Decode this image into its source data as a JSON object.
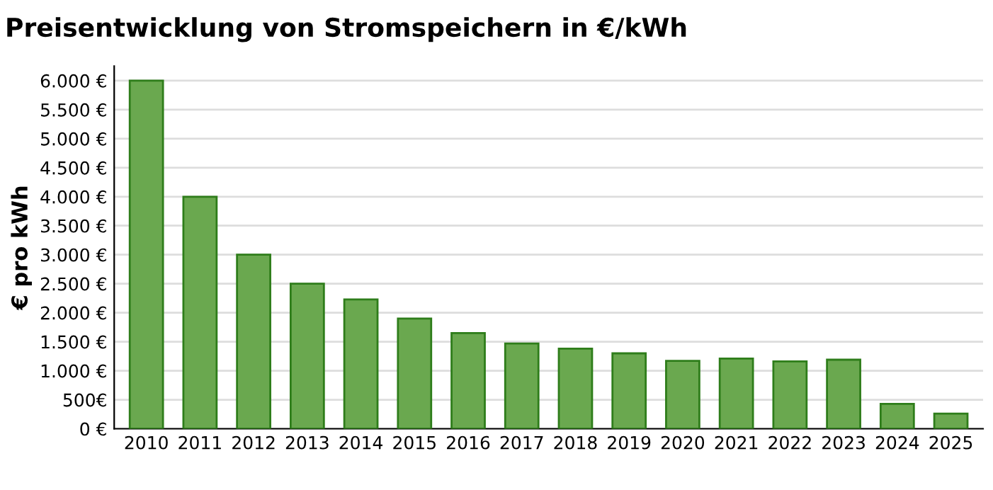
{
  "chart_data": {
    "type": "bar",
    "title": "Preisentwicklung von Stromspeichern in €/kWh",
    "ylabel": "€ pro kWh",
    "categories": [
      "2010",
      "2011",
      "2012",
      "2013",
      "2014",
      "2015",
      "2016",
      "2017",
      "2018",
      "2019",
      "2020",
      "2021",
      "2022",
      "2023",
      "2024",
      "2025"
    ],
    "values": [
      6000,
      4000,
      3000,
      2500,
      2230,
      1900,
      1650,
      1470,
      1380,
      1300,
      1170,
      1210,
      1160,
      1190,
      430,
      260
    ],
    "color": "#6aa84f",
    "ylim": [
      0,
      6250
    ],
    "yticks": [
      {
        "value": 0,
        "label": "0 €"
      },
      {
        "value": 500,
        "label": "500€"
      },
      {
        "value": 1000,
        "label": "1.000 €"
      },
      {
        "value": 1500,
        "label": "1.500 €"
      },
      {
        "value": 2000,
        "label": "2.000 €"
      },
      {
        "value": 2500,
        "label": "2.500 €"
      },
      {
        "value": 3000,
        "label": "3.000 €"
      },
      {
        "value": 3500,
        "label": "3.500 €"
      },
      {
        "value": 4000,
        "label": "4.000 €"
      },
      {
        "value": 4500,
        "label": "4.500 €"
      },
      {
        "value": 5000,
        "label": "5.000 €"
      },
      {
        "value": 5500,
        "label": "5.500 €"
      },
      {
        "value": 6000,
        "label": "6.000 €"
      }
    ],
    "grid": "y",
    "legend": false
  }
}
